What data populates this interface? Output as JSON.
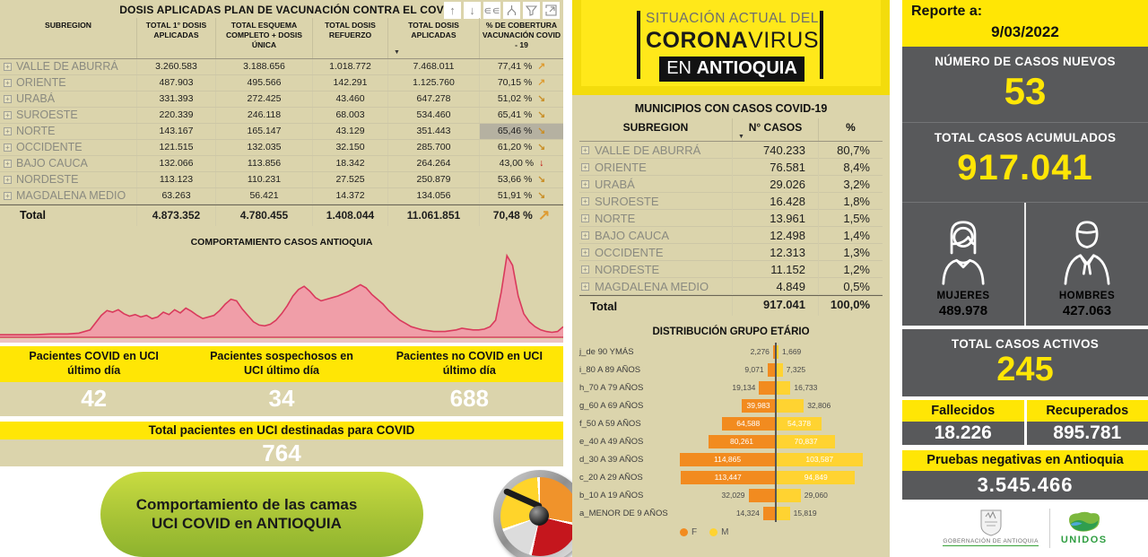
{
  "left_panel": {
    "title": "DOSIS APLICADAS PLAN DE VACUNACIÓN CONTRA EL COV",
    "toolbar_icons": [
      "drill-up",
      "drill-down",
      "show-next-level",
      "expand-all",
      "filter",
      "focus-mode"
    ],
    "vaccination_table": {
      "columns": [
        "SUBREGION",
        "TOTAL 1° DOSIS APLICADAS",
        "TOTAL ESQUEMA COMPLETO + DOSIS ÚNICA",
        "TOTAL DOSIS REFUERZO",
        "TOTAL DOSIS APLICADAS",
        "% DE COBERTURA VACUNACIÓN COVID - 19"
      ],
      "rows": [
        {
          "name": "VALLE DE ABURRÁ",
          "dosis1": "3.260.583",
          "esquema": "3.188.656",
          "refuerzo": "1.018.772",
          "total": "7.468.011",
          "cobertura": "77,41 %",
          "trend": "up",
          "highlight": false
        },
        {
          "name": "ORIENTE",
          "dosis1": "487.903",
          "esquema": "495.566",
          "refuerzo": "142.291",
          "total": "1.125.760",
          "cobertura": "70,15 %",
          "trend": "up",
          "highlight": false
        },
        {
          "name": "URABÁ",
          "dosis1": "331.393",
          "esquema": "272.425",
          "refuerzo": "43.460",
          "total": "647.278",
          "cobertura": "51,02 %",
          "trend": "downright",
          "highlight": false
        },
        {
          "name": "SUROESTE",
          "dosis1": "220.339",
          "esquema": "246.118",
          "refuerzo": "68.003",
          "total": "534.460",
          "cobertura": "65,41 %",
          "trend": "downright",
          "highlight": false
        },
        {
          "name": "NORTE",
          "dosis1": "143.167",
          "esquema": "165.147",
          "refuerzo": "43.129",
          "total": "351.443",
          "cobertura": "65,46 %",
          "trend": "downright",
          "highlight": true
        },
        {
          "name": "OCCIDENTE",
          "dosis1": "121.515",
          "esquema": "132.035",
          "refuerzo": "32.150",
          "total": "285.700",
          "cobertura": "61,20 %",
          "trend": "downright",
          "highlight": false
        },
        {
          "name": "BAJO CAUCA",
          "dosis1": "132.066",
          "esquema": "113.856",
          "refuerzo": "18.342",
          "total": "264.264",
          "cobertura": "43,00 %",
          "trend": "down",
          "highlight": false
        },
        {
          "name": "NORDESTE",
          "dosis1": "113.123",
          "esquema": "110.231",
          "refuerzo": "27.525",
          "total": "250.879",
          "cobertura": "53,66 %",
          "trend": "downright",
          "highlight": false
        },
        {
          "name": "MAGDALENA MEDIO",
          "dosis1": "63.263",
          "esquema": "56.421",
          "refuerzo": "14.372",
          "total": "134.056",
          "cobertura": "51,91 %",
          "trend": "downright",
          "highlight": false
        }
      ],
      "total_row": {
        "name": "Total",
        "dosis1": "4.873.352",
        "esquema": "4.780.455",
        "refuerzo": "1.408.044",
        "total": "11.061.851",
        "cobertura": "70,48 %",
        "trend": "up"
      }
    },
    "uci_cards": [
      {
        "label": "Pacientes COVID en UCI último día",
        "value": "42"
      },
      {
        "label": "Pacientes sospechosos en UCI último día",
        "value": "34"
      },
      {
        "label": "Pacientes no COVID en UCI último día",
        "value": "688"
      }
    ],
    "uci_total": {
      "label": "Total pacientes en UCI destinadas para COVID",
      "value": "764"
    },
    "banner_text": "Comportamiento de las camas UCI COVID en ANTIOQUIA"
  },
  "middle_panel": {
    "header": {
      "line1": "SITUACIÓN ACTUAL DEL",
      "brand_bold": "CORONA",
      "brand_light": "VIRUS",
      "line3_pre": "EN ",
      "line3_bold": "ANTIOQUIA"
    },
    "municipios": {
      "title": "MUNICIPIOS CON CASOS COVID-19",
      "columns": [
        "SUBREGION",
        "N° CASOS",
        "%"
      ],
      "rows": [
        {
          "name": "VALLE DE ABURRÁ",
          "casos": "740.233",
          "pct": "80,7%"
        },
        {
          "name": "ORIENTE",
          "casos": "76.581",
          "pct": "8,4%"
        },
        {
          "name": "URABÁ",
          "casos": "29.026",
          "pct": "3,2%"
        },
        {
          "name": "SUROESTE",
          "casos": "16.428",
          "pct": "1,8%"
        },
        {
          "name": "NORTE",
          "casos": "13.961",
          "pct": "1,5%"
        },
        {
          "name": "BAJO CAUCA",
          "casos": "12.498",
          "pct": "1,4%"
        },
        {
          "name": "OCCIDENTE",
          "casos": "12.313",
          "pct": "1,3%"
        },
        {
          "name": "NORDESTE",
          "casos": "11.152",
          "pct": "1,2%"
        },
        {
          "name": "MAGDALENA MEDIO",
          "casos": "4.849",
          "pct": "0,5%"
        }
      ],
      "total_row": {
        "name": "Total",
        "casos": "917.041",
        "pct": "100,0%"
      }
    }
  },
  "right_panel": {
    "report": {
      "label": "Reporte a:",
      "date": "9/03/2022"
    },
    "new_cases": {
      "label": "NÚMERO DE CASOS NUEVOS",
      "value": "53"
    },
    "total_cases": {
      "label": "TOTAL CASOS ACUMULADOS",
      "value": "917.041"
    },
    "gender": {
      "women_label": "MUJERES",
      "women_value": "489.978",
      "men_label": "HOMBRES",
      "men_value": "427.063"
    },
    "active": {
      "label": "TOTAL CASOS ACTIVOS",
      "value": "245"
    },
    "deaths": {
      "label": "Fallecidos",
      "value": "18.226"
    },
    "recovered": {
      "label": "Recuperados",
      "value": "895.781"
    },
    "negative_tests": {
      "label": "Pruebas negativas en Antioquia",
      "value": "3.545.466"
    },
    "logos": {
      "gobernacion": "GOBERNACIÓN DE ANTIOQUIA",
      "unidos": "UNIDOS"
    }
  },
  "colors": {
    "accent_yellow": "#FFE605",
    "panel_tan": "#DBD4AC",
    "panel_gray": "#58595B",
    "area_fill": "#F09EA8",
    "area_stroke": "#D93A5C",
    "bar_orange": "#F28B1F",
    "bar_yellow": "#FFD331",
    "banner_green": "#A7C336",
    "trend_orange": "#DE9B31",
    "trend_red": "#C00000"
  },
  "chart_data": [
    {
      "type": "area",
      "title": "COMPORTAMIENTO CASOS ANTIOQUIA",
      "xlabel": "",
      "ylabel": "",
      "legend": false,
      "grid": false,
      "note": "daily COVID cases curve, relative scale 0-100, x = time 0-100",
      "points": [
        [
          0,
          2
        ],
        [
          3,
          2
        ],
        [
          6,
          2
        ],
        [
          9,
          3
        ],
        [
          12,
          3
        ],
        [
          14,
          4
        ],
        [
          16,
          8
        ],
        [
          18,
          26
        ],
        [
          19,
          32
        ],
        [
          20,
          30
        ],
        [
          21,
          33
        ],
        [
          22,
          28
        ],
        [
          23,
          25
        ],
        [
          24,
          27
        ],
        [
          25,
          24
        ],
        [
          26,
          26
        ],
        [
          27,
          22
        ],
        [
          28,
          24
        ],
        [
          29,
          30
        ],
        [
          30,
          27
        ],
        [
          31,
          33
        ],
        [
          32,
          29
        ],
        [
          33,
          35
        ],
        [
          34,
          31
        ],
        [
          35,
          26
        ],
        [
          36,
          22
        ],
        [
          38,
          26
        ],
        [
          39,
          32
        ],
        [
          40,
          40
        ],
        [
          41,
          46
        ],
        [
          42,
          44
        ],
        [
          43,
          34
        ],
        [
          44,
          26
        ],
        [
          45,
          18
        ],
        [
          46,
          14
        ],
        [
          47,
          13
        ],
        [
          48,
          15
        ],
        [
          49,
          20
        ],
        [
          50,
          28
        ],
        [
          51,
          38
        ],
        [
          52,
          50
        ],
        [
          53,
          58
        ],
        [
          54,
          62
        ],
        [
          55,
          56
        ],
        [
          56,
          48
        ],
        [
          57,
          44
        ],
        [
          58,
          46
        ],
        [
          59,
          48
        ],
        [
          60,
          50
        ],
        [
          61,
          53
        ],
        [
          62,
          56
        ],
        [
          63,
          60
        ],
        [
          64,
          64
        ],
        [
          65,
          60
        ],
        [
          66,
          52
        ],
        [
          67,
          46
        ],
        [
          68,
          40
        ],
        [
          69,
          32
        ],
        [
          70,
          26
        ],
        [
          71,
          20
        ],
        [
          72,
          16
        ],
        [
          73,
          12
        ],
        [
          74,
          10
        ],
        [
          75,
          8
        ],
        [
          76,
          7
        ],
        [
          77,
          6
        ],
        [
          78,
          6
        ],
        [
          79,
          6
        ],
        [
          80,
          7
        ],
        [
          81,
          8
        ],
        [
          82,
          10
        ],
        [
          83,
          9
        ],
        [
          84,
          8
        ],
        [
          85,
          8
        ],
        [
          86,
          9
        ],
        [
          87,
          12
        ],
        [
          88,
          20
        ],
        [
          89,
          55
        ],
        [
          90,
          100
        ],
        [
          91,
          88
        ],
        [
          92,
          50
        ],
        [
          93,
          28
        ],
        [
          94,
          18
        ],
        [
          95,
          12
        ],
        [
          96,
          8
        ],
        [
          97,
          6
        ],
        [
          98,
          5
        ],
        [
          99,
          6
        ],
        [
          100,
          12
        ]
      ]
    },
    {
      "type": "bar",
      "subtype": "population-pyramid",
      "title": "DISTRIBUCIÓN GRUPO ETÁRIO",
      "categories": [
        "j_de 90 YMÁS",
        "i_80 A 89 AÑOS",
        "h_70 A 79 AÑOS",
        "g_60 A 69 AÑOS",
        "f_50 A 59 AÑOS",
        "e_40 A 49 AÑOS",
        "d_30 A 39 AÑOS",
        "c_20 A 29 AÑOS",
        "b_10 A 19 AÑOS",
        "a_MENOR DE 9 AÑOS"
      ],
      "series": [
        {
          "name": "F",
          "color": "#F28B1F",
          "values": [
            2276,
            9071,
            19134,
            39983,
            64588,
            80261,
            114865,
            113447,
            32029,
            14324
          ]
        },
        {
          "name": "M",
          "color": "#FFD331",
          "values": [
            1669,
            7325,
            16733,
            32806,
            54378,
            70837,
            103587,
            94849,
            29060,
            15819
          ]
        }
      ],
      "xmax": 115000,
      "legend_position": "bottom"
    }
  ]
}
